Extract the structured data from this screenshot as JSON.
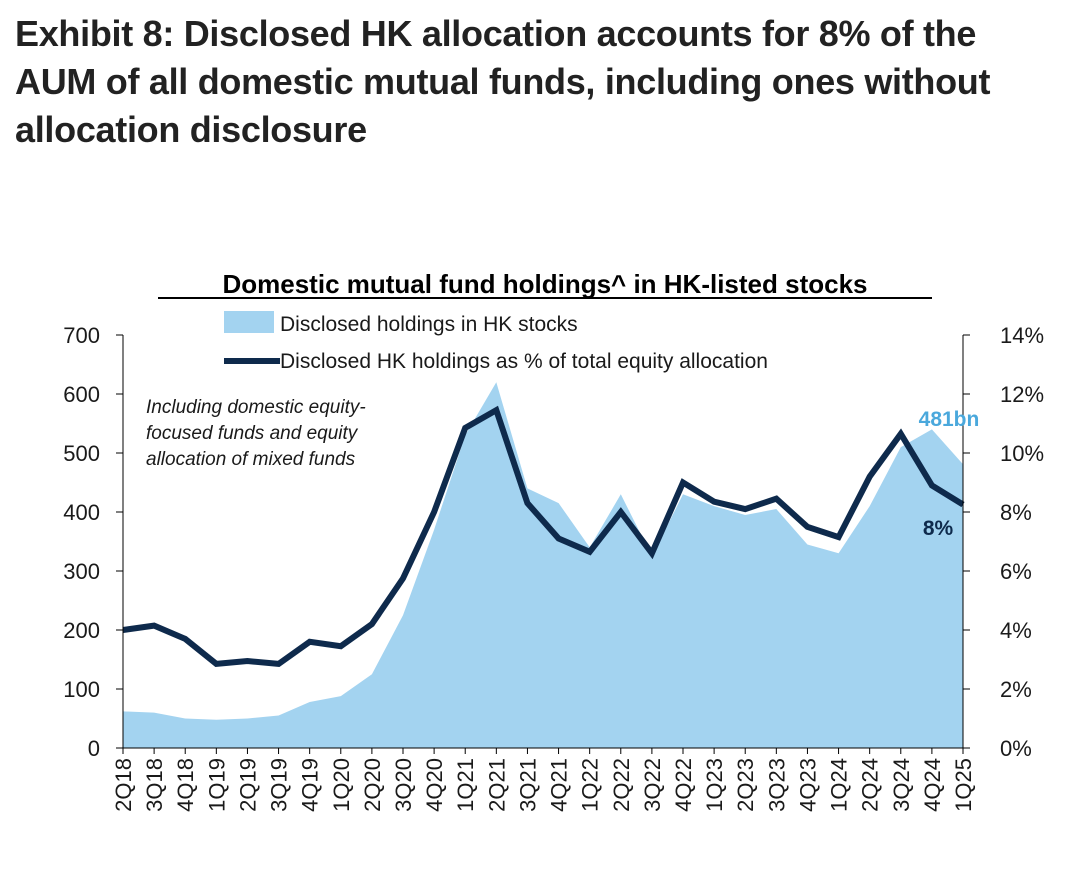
{
  "exhibit_title": "Exhibit 8: Disclosed HK allocation accounts for 8% of the AUM of all domestic mutual funds, including ones without allocation disclosure",
  "colors": {
    "area_fill": "#a3d3f0",
    "line": "#0e2a4c",
    "area_label": "#4aa8dc",
    "line_label": "#0e2a4c",
    "axis": "#000000",
    "text": "#1a1a1a"
  },
  "chart_data": {
    "type": "line",
    "title": "Domestic mutual fund holdings^ in HK-listed stocks",
    "categories": [
      "2Q18",
      "3Q18",
      "4Q18",
      "1Q19",
      "2Q19",
      "3Q19",
      "4Q19",
      "1Q20",
      "2Q20",
      "3Q20",
      "4Q20",
      "1Q21",
      "2Q21",
      "3Q21",
      "4Q21",
      "1Q22",
      "2Q22",
      "3Q22",
      "4Q22",
      "1Q23",
      "2Q23",
      "3Q23",
      "4Q23",
      "1Q24",
      "2Q24",
      "3Q24",
      "4Q24",
      "1Q25"
    ],
    "y_left": {
      "min": 0,
      "max": 700,
      "step": 100,
      "ticks": [
        "0",
        "100",
        "200",
        "300",
        "400",
        "500",
        "600",
        "700"
      ]
    },
    "y_right": {
      "min": 0,
      "max": 14,
      "step": 2,
      "ticks": [
        "0%",
        "2%",
        "4%",
        "6%",
        "8%",
        "10%",
        "12%",
        "14%"
      ]
    },
    "series": [
      {
        "name": "Disclosed holdings in HK stocks",
        "type": "area",
        "axis": "left",
        "values": [
          62,
          60,
          50,
          48,
          50,
          55,
          78,
          88,
          125,
          225,
          370,
          530,
          620,
          440,
          415,
          340,
          430,
          325,
          430,
          410,
          395,
          405,
          345,
          330,
          410,
          510,
          540,
          481
        ]
      },
      {
        "name": "Disclosed HK holdings as % of total equity allocation",
        "type": "line",
        "axis": "right",
        "values": [
          4.0,
          4.15,
          3.7,
          2.85,
          2.95,
          2.85,
          3.6,
          3.45,
          4.2,
          5.75,
          8.0,
          10.85,
          11.45,
          8.3,
          7.1,
          6.65,
          8.0,
          6.6,
          9.0,
          8.35,
          8.1,
          8.45,
          7.5,
          7.15,
          9.2,
          10.65,
          8.9,
          8.25
        ]
      }
    ],
    "note": "Including domestic equity-focused funds and equity allocation of mixed funds",
    "area_end_label": "481bn",
    "line_end_label": "8%",
    "legend_position": "top-center",
    "grid": false
  }
}
